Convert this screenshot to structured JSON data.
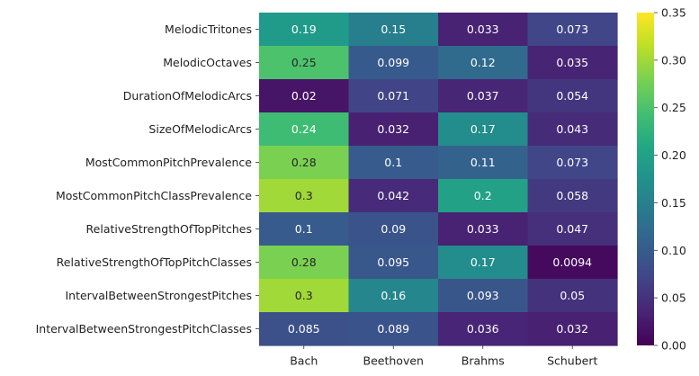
{
  "chart_data": {
    "type": "heatmap",
    "title": "",
    "xlabel": "",
    "ylabel": "",
    "columns": [
      "Bach",
      "Beethoven",
      "Brahms",
      "Schubert"
    ],
    "rows": [
      "MelodicTritones",
      "MelodicOctaves",
      "DurationOfMelodicArcs",
      "SizeOfMelodicArcs",
      "MostCommonPitchPrevalence",
      "MostCommonPitchClassPrevalence",
      "RelativeStrengthOfTopPitches",
      "RelativeStrengthOfTopPitchClasses",
      "IntervalBetweenStrongestPitches",
      "IntervalBetweenStrongestPitchClasses"
    ],
    "values": [
      [
        0.19,
        0.15,
        0.033,
        0.073
      ],
      [
        0.25,
        0.099,
        0.12,
        0.035
      ],
      [
        0.02,
        0.071,
        0.037,
        0.054
      ],
      [
        0.24,
        0.032,
        0.17,
        0.043
      ],
      [
        0.28,
        0.1,
        0.11,
        0.073
      ],
      [
        0.3,
        0.042,
        0.2,
        0.058
      ],
      [
        0.1,
        0.09,
        0.033,
        0.047
      ],
      [
        0.28,
        0.095,
        0.17,
        0.0094
      ],
      [
        0.3,
        0.16,
        0.093,
        0.05
      ],
      [
        0.085,
        0.089,
        0.036,
        0.032
      ]
    ],
    "value_labels": [
      [
        "0.19",
        "0.15",
        "0.033",
        "0.073"
      ],
      [
        "0.25",
        "0.099",
        "0.12",
        "0.035"
      ],
      [
        "0.02",
        "0.071",
        "0.037",
        "0.054"
      ],
      [
        "0.24",
        "0.032",
        "0.17",
        "0.043"
      ],
      [
        "0.28",
        "0.1",
        "0.11",
        "0.073"
      ],
      [
        "0.3",
        "0.042",
        "0.2",
        "0.058"
      ],
      [
        "0.1",
        "0.09",
        "0.033",
        "0.047"
      ],
      [
        "0.28",
        "0.095",
        "0.17",
        "0.0094"
      ],
      [
        "0.3",
        "0.16",
        "0.093",
        "0.05"
      ],
      [
        "0.085",
        "0.089",
        "0.036",
        "0.032"
      ]
    ],
    "colormap": "viridis",
    "colorbar": {
      "range": [
        0,
        0.35
      ],
      "ticks": [
        0.0,
        0.05,
        0.1,
        0.15,
        0.2,
        0.25,
        0.3,
        0.35
      ],
      "tick_labels": [
        "0.00",
        "0.05",
        "0.10",
        "0.15",
        "0.20",
        "0.25",
        "0.30",
        "0.35"
      ],
      "position": "right"
    },
    "annotation_colors": {
      "on_dark": "#ffffff",
      "on_light": "#262626"
    }
  }
}
